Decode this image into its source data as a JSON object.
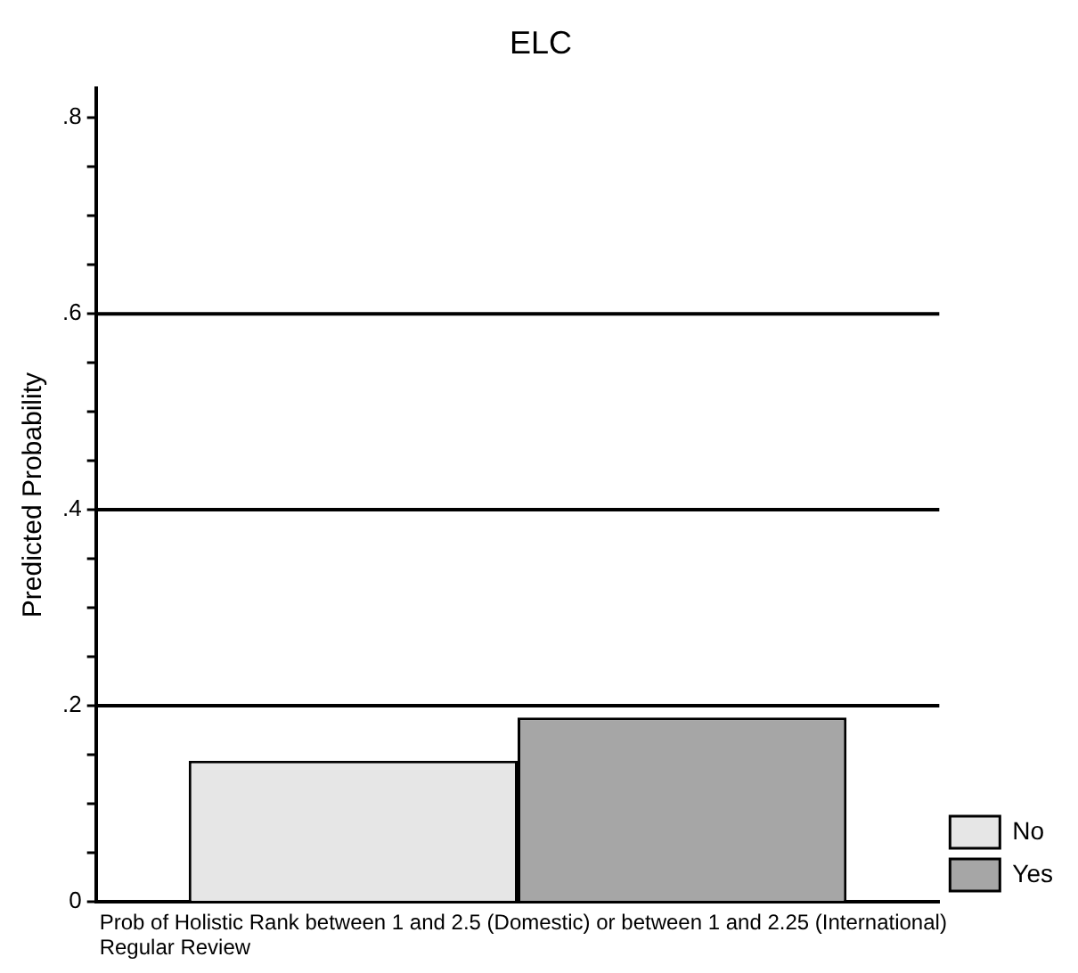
{
  "chart_data": {
    "type": "bar",
    "title": "ELC",
    "ylabel": "Predicted Probability",
    "xlabel": "Prob of Holistic Rank between 1 and 2.5 (Domestic) or between 1 and 2.25 (International)\nRegular Review",
    "categories": [
      null
    ],
    "series": [
      {
        "name": "No",
        "color": "#e6e6e6",
        "values": [
          0.144
        ]
      },
      {
        "name": "Yes",
        "color": "#a6a6a6",
        "values": [
          0.188
        ]
      }
    ],
    "ylim": [
      0,
      0.83
    ],
    "yticks": [
      0,
      {
        "value": 0.05,
        "label": null
      },
      {
        "value": 0.1,
        "label": null
      },
      {
        "value": 0.15,
        "label": null
      },
      {
        "value": 0.2,
        "label": ".2"
      },
      {
        "value": 0.25,
        "label": null
      },
      {
        "value": 0.3,
        "label": null
      },
      {
        "value": 0.35,
        "label": null
      },
      {
        "value": 0.4,
        "label": ".4"
      },
      {
        "value": 0.45,
        "label": null
      },
      {
        "value": 0.5,
        "label": null
      },
      {
        "value": 0.55,
        "label": null
      },
      {
        "value": 0.6,
        "label": ".6"
      },
      {
        "value": 0.65,
        "label": null
      },
      {
        "value": 0.7,
        "label": null
      },
      {
        "value": 0.75,
        "label": null
      },
      {
        "value": 0.8,
        "label": ".8"
      }
    ],
    "ref_lines": [
      {
        "axis": "y",
        "value": 0.2,
        "color": "#000000"
      },
      {
        "axis": "y",
        "value": 0.4,
        "color": "#000000"
      },
      {
        "axis": "y",
        "value": 0.6,
        "color": "#000000"
      }
    ],
    "grid": false,
    "legend": "bottom right"
  }
}
